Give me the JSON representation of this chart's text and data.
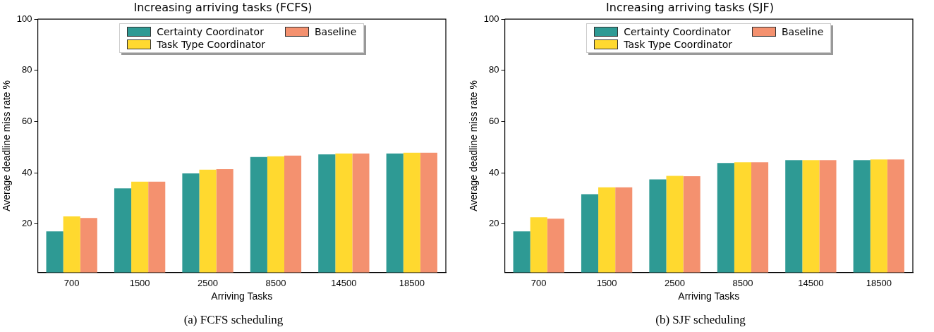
{
  "chart_data": [
    {
      "type": "bar",
      "title": "Increasing arriving tasks (FCFS)",
      "xlabel": "Arriving Tasks",
      "ylabel": "Average deadline miss rate %",
      "categories": [
        "700",
        "1500",
        "2500",
        "8500",
        "14500",
        "18500"
      ],
      "series": [
        {
          "name": "Certainty Coordinator",
          "color": "#2e9a94",
          "values": [
            17.1,
            33.9,
            39.7,
            46.1,
            47.2,
            47.5
          ]
        },
        {
          "name": "Task Type Coordinator",
          "color": "#ffd92f",
          "values": [
            22.9,
            36.5,
            41.2,
            46.4,
            47.5,
            47.8
          ]
        },
        {
          "name": "Baseline",
          "color": "#f4916f",
          "values": [
            22.3,
            36.5,
            41.4,
            46.7,
            47.5,
            47.8
          ]
        }
      ],
      "ylim": [
        1,
        100
      ],
      "yticks": [
        20,
        40,
        60,
        80,
        100
      ],
      "grid": false,
      "legend": "top",
      "annotations": [
        "(a) FCFS scheduling"
      ]
    },
    {
      "type": "bar",
      "title": "Increasing arriving tasks (SJF)",
      "xlabel": "Arriving Tasks",
      "ylabel": "Average deadline miss rate %",
      "categories": [
        "700",
        "1500",
        "2500",
        "8500",
        "14500",
        "18500"
      ],
      "series": [
        {
          "name": "Certainty Coordinator",
          "color": "#2e9a94",
          "values": [
            17.1,
            31.6,
            37.4,
            43.8,
            44.9,
            44.9
          ]
        },
        {
          "name": "Task Type Coordinator",
          "color": "#ffd92f",
          "values": [
            22.6,
            34.3,
            38.8,
            44.1,
            44.9,
            45.2
          ]
        },
        {
          "name": "Baseline",
          "color": "#f4916f",
          "values": [
            22.0,
            34.3,
            38.6,
            44.1,
            44.9,
            45.2
          ]
        }
      ],
      "ylim": [
        1,
        100
      ],
      "yticks": [
        20,
        40,
        60,
        80,
        100
      ],
      "grid": false,
      "legend": "top",
      "annotations": [
        "(b) SJF scheduling"
      ]
    }
  ]
}
